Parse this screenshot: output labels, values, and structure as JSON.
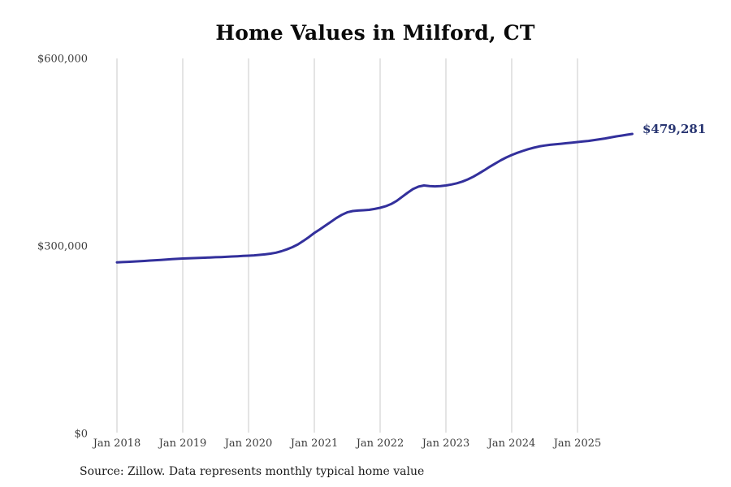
{
  "title": "Home Values in Milford, CT",
  "source_note": "Source: Zillow. Data represents monthly typical home value",
  "end_label": "$479,281",
  "colors": {
    "line": "#33309c",
    "end_label": "#293672",
    "gridline": "#c9c9c9",
    "tick_text": "#3d3d3d",
    "title": "#0a0a0a",
    "background": "#ffffff"
  },
  "chart_data": {
    "type": "line",
    "title": "Home Values in Milford, CT",
    "xlabel": "",
    "ylabel": "",
    "grid": "vertical-only",
    "legend": "none",
    "ylim": [
      0,
      600000
    ],
    "y_ticks": [
      {
        "label": "$0",
        "value": 0
      },
      {
        "label": "$300,000",
        "value": 300000
      },
      {
        "label": "$600,000",
        "value": 600000
      }
    ],
    "x_ticks": [
      {
        "label": "Jan 2018",
        "date": "2018-01"
      },
      {
        "label": "Jan 2019",
        "date": "2019-01"
      },
      {
        "label": "Jan 2020",
        "date": "2020-01"
      },
      {
        "label": "Jan 2021",
        "date": "2021-01"
      },
      {
        "label": "Jan 2022",
        "date": "2022-01"
      },
      {
        "label": "Jan 2023",
        "date": "2023-01"
      },
      {
        "label": "Jan 2024",
        "date": "2024-01"
      },
      {
        "label": "Jan 2025",
        "date": "2025-01"
      }
    ],
    "series": [
      {
        "name": "Monthly typical home value",
        "color": "#33309c",
        "latest_value": 479281,
        "latest_value_label": "$479,281",
        "points": [
          [
            "2018-01",
            273800
          ],
          [
            "2018-02",
            274200
          ],
          [
            "2018-03",
            274600
          ],
          [
            "2018-04",
            275000
          ],
          [
            "2018-05",
            275500
          ],
          [
            "2018-06",
            276000
          ],
          [
            "2018-07",
            276600
          ],
          [
            "2018-08",
            277100
          ],
          [
            "2018-09",
            277700
          ],
          [
            "2018-10",
            278200
          ],
          [
            "2018-11",
            278800
          ],
          [
            "2018-12",
            279300
          ],
          [
            "2019-01",
            279900
          ],
          [
            "2019-02",
            280200
          ],
          [
            "2019-03",
            280500
          ],
          [
            "2019-04",
            280900
          ],
          [
            "2019-05",
            281200
          ],
          [
            "2019-06",
            281500
          ],
          [
            "2019-07",
            281900
          ],
          [
            "2019-08",
            282200
          ],
          [
            "2019-09",
            282600
          ],
          [
            "2019-10",
            283100
          ],
          [
            "2019-11",
            283500
          ],
          [
            "2019-12",
            284000
          ],
          [
            "2020-01",
            284400
          ],
          [
            "2020-02",
            285000
          ],
          [
            "2020-03",
            285700
          ],
          [
            "2020-04",
            286500
          ],
          [
            "2020-05",
            287600
          ],
          [
            "2020-06",
            289200
          ],
          [
            "2020-07",
            291500
          ],
          [
            "2020-08",
            294500
          ],
          [
            "2020-09",
            298000
          ],
          [
            "2020-10",
            302500
          ],
          [
            "2020-11",
            308000
          ],
          [
            "2020-12",
            314200
          ],
          [
            "2021-01",
            320800
          ],
          [
            "2021-02",
            326500
          ],
          [
            "2021-03",
            332500
          ],
          [
            "2021-04",
            338500
          ],
          [
            "2021-05",
            344500
          ],
          [
            "2021-06",
            349800
          ],
          [
            "2021-07",
            353800
          ],
          [
            "2021-08",
            355800
          ],
          [
            "2021-09",
            356600
          ],
          [
            "2021-10",
            357100
          ],
          [
            "2021-11",
            357800
          ],
          [
            "2021-12",
            359200
          ],
          [
            "2022-01",
            361000
          ],
          [
            "2022-02",
            363500
          ],
          [
            "2022-03",
            367000
          ],
          [
            "2022-04",
            372000
          ],
          [
            "2022-05",
            378500
          ],
          [
            "2022-06",
            385000
          ],
          [
            "2022-07",
            391000
          ],
          [
            "2022-08",
            395000
          ],
          [
            "2022-09",
            396800
          ],
          [
            "2022-10",
            395800
          ],
          [
            "2022-11",
            395300
          ],
          [
            "2022-12",
            395800
          ],
          [
            "2023-01",
            396800
          ],
          [
            "2023-02",
            398300
          ],
          [
            "2023-03",
            400300
          ],
          [
            "2023-04",
            403000
          ],
          [
            "2023-05",
            406500
          ],
          [
            "2023-06",
            410800
          ],
          [
            "2023-07",
            415800
          ],
          [
            "2023-08",
            421200
          ],
          [
            "2023-09",
            426700
          ],
          [
            "2023-10",
            432000
          ],
          [
            "2023-11",
            437000
          ],
          [
            "2023-12",
            441500
          ],
          [
            "2024-01",
            445500
          ],
          [
            "2024-02",
            448900
          ],
          [
            "2024-03",
            452000
          ],
          [
            "2024-04",
            454800
          ],
          [
            "2024-05",
            457200
          ],
          [
            "2024-06",
            459200
          ],
          [
            "2024-07",
            460700
          ],
          [
            "2024-08",
            461800
          ],
          [
            "2024-09",
            462700
          ],
          [
            "2024-10",
            463500
          ],
          [
            "2024-11",
            464400
          ],
          [
            "2024-12",
            465300
          ],
          [
            "2025-01",
            466200
          ],
          [
            "2025-02",
            467100
          ],
          [
            "2025-03",
            468100
          ],
          [
            "2025-04",
            469300
          ],
          [
            "2025-05",
            470600
          ],
          [
            "2025-06",
            472000
          ],
          [
            "2025-07",
            473500
          ],
          [
            "2025-08",
            475200
          ],
          [
            "2025-09",
            476500
          ],
          [
            "2025-10",
            477900
          ],
          [
            "2025-11",
            479281
          ]
        ]
      }
    ]
  }
}
